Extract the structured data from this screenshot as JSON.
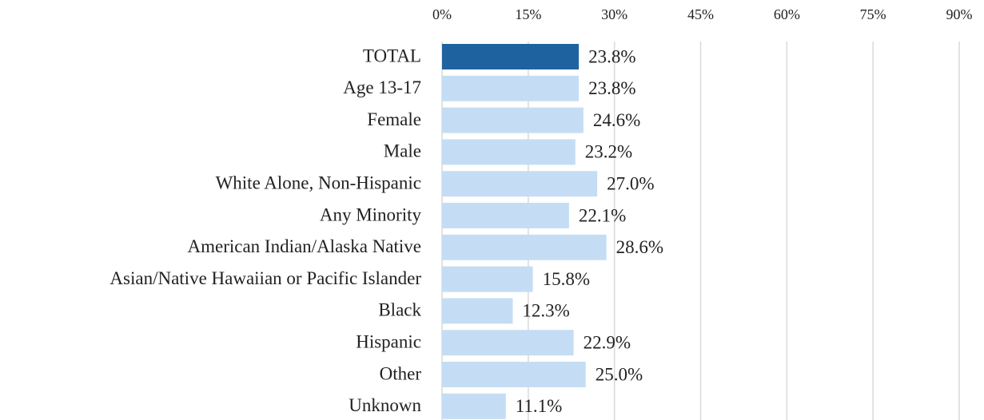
{
  "chart_data": {
    "type": "hbar",
    "categories": [
      "TOTAL",
      "Age 13-17",
      "Female",
      "Male",
      "White Alone, Non-Hispanic",
      "Any Minority",
      "American Indian/Alaska Native",
      "Asian/Native Hawaiian or Pacific Islander",
      "Black",
      "Hispanic",
      "Other",
      "Unknown"
    ],
    "values": [
      23.8,
      23.8,
      24.6,
      23.2,
      27.0,
      22.1,
      28.6,
      15.8,
      12.3,
      22.9,
      25.0,
      11.1
    ],
    "value_labels": [
      "23.8%",
      "23.8%",
      "24.6%",
      "23.2%",
      "27.0%",
      "22.1%",
      "28.6%",
      "15.8%",
      "12.3%",
      "22.9%",
      "25.0%",
      "11.1%"
    ],
    "colors": [
      "#1f62a0",
      "#c5ddf4",
      "#c5ddf4",
      "#c5ddf4",
      "#c5ddf4",
      "#c5ddf4",
      "#c5ddf4",
      "#c5ddf4",
      "#c5ddf4",
      "#c5ddf4",
      "#c5ddf4",
      "#c5ddf4"
    ],
    "xlim": [
      0,
      90
    ],
    "xticks": [
      {
        "value": 0,
        "label": "0%"
      },
      {
        "value": 15,
        "label": "15%"
      },
      {
        "value": 30,
        "label": "30%"
      },
      {
        "value": 45,
        "label": "45%"
      },
      {
        "value": 60,
        "label": "60%"
      },
      {
        "value": 75,
        "label": "75%"
      },
      {
        "value": 90,
        "label": "90%"
      }
    ],
    "grid": true
  }
}
